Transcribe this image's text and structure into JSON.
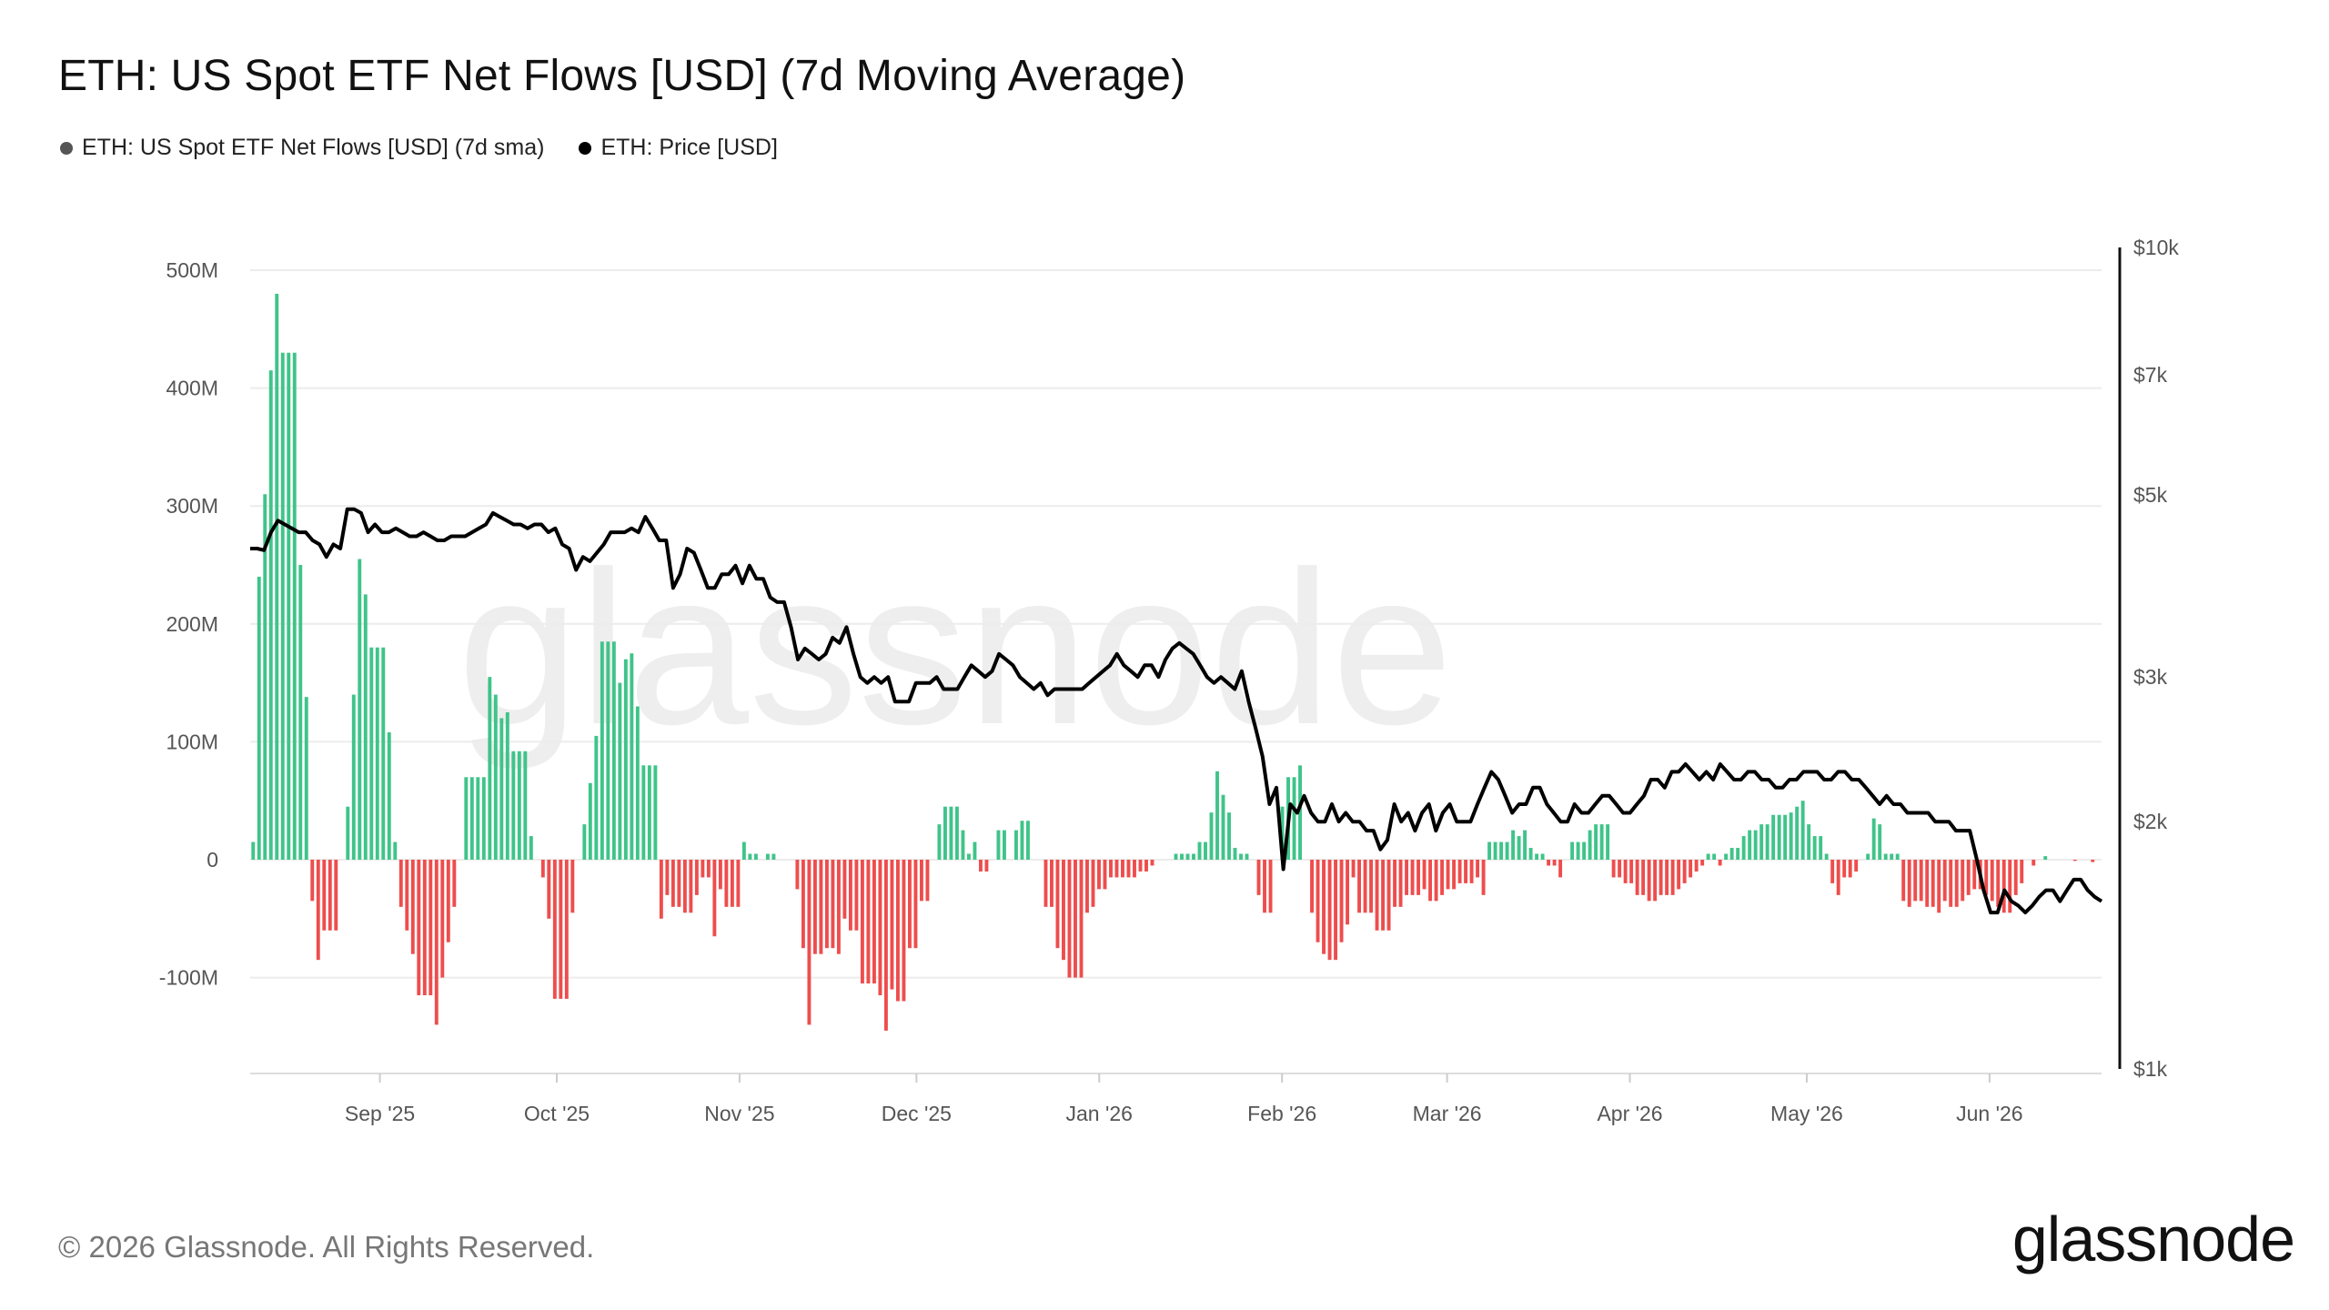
{
  "header": {
    "title": "ETH: US Spot ETF Net Flows [USD] (7d Moving Average)"
  },
  "legend": [
    {
      "label": "ETH: US Spot ETF Net Flows [USD] (7d sma)",
      "color": "#555555"
    },
    {
      "label": "ETH: Price [USD]",
      "color": "#000000"
    }
  ],
  "footer": {
    "copyright": "© 2026 Glassnode. All Rights Reserved.",
    "brand": "glassnode"
  },
  "watermark": "glassnode",
  "colors": {
    "positive": "#3fc489",
    "negative": "#ee4d4d",
    "price_line": "#000000",
    "grid": "#ececec"
  },
  "chart_data": {
    "type": "bar",
    "title": "ETH: US Spot ETF Net Flows [USD] (7d Moving Average)",
    "x_ticks": [
      "Sep '25",
      "Oct '25",
      "Nov '25",
      "Dec '25",
      "Jan '26",
      "Feb '26",
      "Mar '26",
      "Apr '26",
      "May '26",
      "Jun '26"
    ],
    "y_left": {
      "ticks": [
        500,
        400,
        300,
        200,
        100,
        0,
        -100
      ],
      "labels": [
        "500M",
        "400M",
        "300M",
        "200M",
        "100M",
        "0",
        "-100M"
      ],
      "unit": "M USD",
      "range": [
        -180,
        510
      ]
    },
    "y_right": {
      "scale": "log",
      "ticks": [
        10000,
        7000,
        5000,
        3000,
        2000,
        1000
      ],
      "labels": [
        "$10k",
        "$7k",
        "$5k",
        "$3k",
        "$2k",
        "$1k"
      ],
      "range": [
        1000,
        10000
      ]
    },
    "grid": true,
    "legend_position": "top-left",
    "series": [
      {
        "name": "ETH: US Spot ETF Net Flows [USD] (7d sma)",
        "type": "bar",
        "values": [
          15,
          240,
          310,
          415,
          480,
          430,
          430,
          430,
          250,
          138,
          -35,
          -85,
          -60,
          -60,
          -60,
          0,
          45,
          140,
          255,
          225,
          180,
          180,
          180,
          108,
          15,
          -40,
          -60,
          -80,
          -115,
          -115,
          -115,
          -140,
          -100,
          -70,
          -40,
          0,
          70,
          70,
          70,
          70,
          155,
          140,
          120,
          125,
          92,
          92,
          92,
          20,
          0,
          -15,
          -50,
          -118,
          -118,
          -118,
          -45,
          0,
          30,
          65,
          105,
          185,
          185,
          185,
          150,
          170,
          175,
          130,
          80,
          80,
          80,
          -50,
          -30,
          -40,
          -40,
          -45,
          -45,
          -30,
          -15,
          -15,
          -65,
          -25,
          -40,
          -40,
          -40,
          15,
          5,
          5,
          0,
          5,
          5,
          0,
          0,
          0,
          -25,
          -75,
          -140,
          -80,
          -80,
          -75,
          -75,
          -80,
          -50,
          -60,
          -60,
          -105,
          -105,
          -105,
          -115,
          -145,
          -110,
          -120,
          -120,
          -75,
          -75,
          -35,
          -35,
          0,
          30,
          45,
          45,
          45,
          25,
          5,
          15,
          -10,
          -10,
          0,
          25,
          25,
          0,
          25,
          33,
          33,
          0,
          0,
          -40,
          -40,
          -75,
          -85,
          -100,
          -100,
          -100,
          -45,
          -40,
          -25,
          -25,
          -15,
          -15,
          -15,
          -15,
          -15,
          -10,
          -10,
          -5,
          0,
          0,
          0,
          5,
          5,
          5,
          5,
          15,
          15,
          40,
          75,
          55,
          40,
          10,
          5,
          5,
          0,
          -30,
          -45,
          -45,
          0,
          45,
          70,
          70,
          80,
          0,
          -45,
          -70,
          -80,
          -85,
          -85,
          -70,
          -55,
          -15,
          -45,
          -45,
          -45,
          -60,
          -60,
          -60,
          -40,
          -40,
          -30,
          -30,
          -30,
          -25,
          -35,
          -35,
          -30,
          -25,
          -25,
          -20,
          -20,
          -20,
          -15,
          -30,
          15,
          15,
          15,
          15,
          25,
          20,
          25,
          10,
          5,
          5,
          -5,
          -5,
          -15,
          0,
          15,
          15,
          15,
          25,
          30,
          30,
          30,
          -15,
          -15,
          -20,
          -20,
          -30,
          -30,
          -35,
          -35,
          -30,
          -30,
          -30,
          -25,
          -20,
          -15,
          -10,
          -5,
          5,
          5,
          -5,
          5,
          10,
          10,
          20,
          25,
          25,
          30,
          30,
          38,
          38,
          38,
          40,
          45,
          50,
          30,
          20,
          20,
          5,
          -20,
          -30,
          -15,
          -15,
          -10,
          0,
          5,
          35,
          30,
          5,
          5,
          5,
          -35,
          -40,
          -35,
          -35,
          -40,
          -40,
          -45,
          -35,
          -40,
          -40,
          -35,
          -30,
          -25,
          -25,
          -30,
          -35,
          -40,
          -45,
          -45,
          -30,
          -20,
          0,
          -5,
          0,
          3,
          0,
          0,
          0,
          0,
          -1,
          0,
          0,
          -2,
          0
        ]
      },
      {
        "name": "ETH: Price [USD]",
        "type": "line",
        "x_start": "2025-08-10",
        "x_end": "2026-06-20",
        "values": [
          4300,
          4300,
          4280,
          4500,
          4650,
          4600,
          4550,
          4500,
          4500,
          4400,
          4350,
          4200,
          4350,
          4300,
          4800,
          4800,
          4750,
          4500,
          4600,
          4500,
          4500,
          4550,
          4500,
          4450,
          4450,
          4500,
          4450,
          4400,
          4400,
          4450,
          4450,
          4450,
          4500,
          4550,
          4600,
          4750,
          4700,
          4650,
          4600,
          4600,
          4550,
          4600,
          4600,
          4500,
          4550,
          4350,
          4300,
          4050,
          4200,
          4150,
          4250,
          4350,
          4500,
          4500,
          4500,
          4550,
          4500,
          4700,
          4550,
          4400,
          4400,
          3850,
          4000,
          4300,
          4250,
          4050,
          3850,
          3850,
          4000,
          4000,
          4100,
          3900,
          4100,
          3950,
          3950,
          3750,
          3700,
          3700,
          3450,
          3150,
          3250,
          3200,
          3150,
          3200,
          3350,
          3300,
          3450,
          3200,
          3000,
          2950,
          3000,
          2950,
          3000,
          2800,
          2800,
          2800,
          2950,
          2950,
          2950,
          3000,
          2900,
          2900,
          2900,
          3000,
          3100,
          3050,
          3000,
          3050,
          3200,
          3150,
          3100,
          3000,
          2950,
          2900,
          2950,
          2850,
          2900,
          2900,
          2900,
          2900,
          2900,
          2950,
          3000,
          3050,
          3100,
          3200,
          3100,
          3050,
          3000,
          3100,
          3100,
          3000,
          3150,
          3250,
          3300,
          3250,
          3200,
          3100,
          3000,
          2950,
          3000,
          2950,
          2900,
          3050,
          2800,
          2600,
          2400,
          2100,
          2200,
          1750,
          2100,
          2050,
          2150,
          2050,
          2000,
          2000,
          2100,
          2000,
          2050,
          2000,
          2000,
          1950,
          1950,
          1850,
          1900,
          2100,
          2000,
          2050,
          1950,
          2050,
          2100,
          1950,
          2050,
          2100,
          2000,
          2000,
          2000,
          2100,
          2200,
          2300,
          2250,
          2150,
          2050,
          2100,
          2100,
          2200,
          2200,
          2100,
          2050,
          2000,
          2000,
          2100,
          2050,
          2050,
          2100,
          2150,
          2150,
          2100,
          2050,
          2050,
          2100,
          2150,
          2250,
          2250,
          2200,
          2300,
          2300,
          2350,
          2300,
          2250,
          2300,
          2250,
          2350,
          2300,
          2250,
          2250,
          2300,
          2300,
          2250,
          2250,
          2200,
          2200,
          2250,
          2250,
          2300,
          2300,
          2300,
          2250,
          2250,
          2300,
          2300,
          2250,
          2250,
          2200,
          2150,
          2100,
          2150,
          2100,
          2100,
          2050,
          2050,
          2050,
          2050,
          2000,
          2000,
          2000,
          1950,
          1950,
          1950,
          1800,
          1650,
          1550,
          1550,
          1650,
          1600,
          1580,
          1550,
          1580,
          1620,
          1650,
          1650,
          1600,
          1650,
          1700,
          1700,
          1650,
          1620,
          1600
        ]
      }
    ]
  }
}
